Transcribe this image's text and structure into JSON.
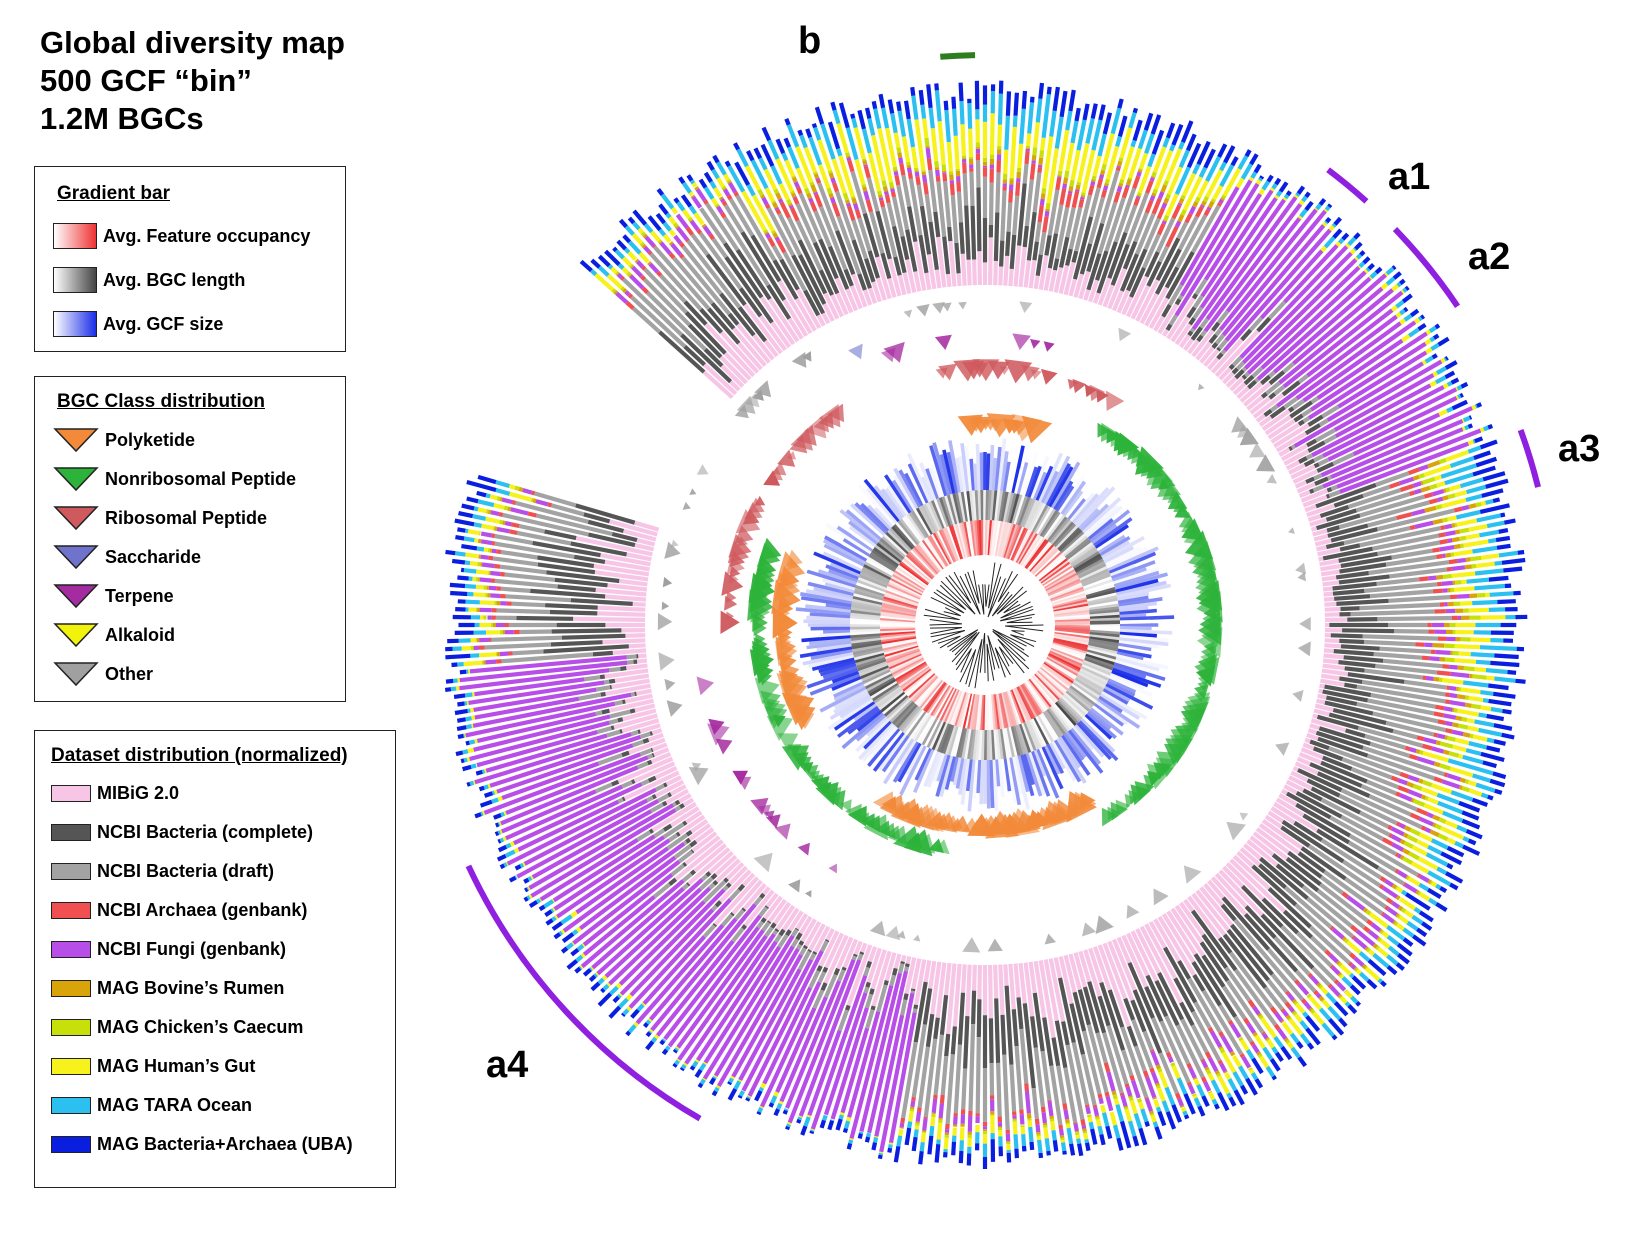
{
  "title": {
    "line1": "Global diversity map",
    "line2": "500 GCF “bin”",
    "line3": "1.2M BGCs"
  },
  "gradient_legend": {
    "heading": "Gradient bar",
    "items": [
      {
        "label": "Avg. Feature occupancy",
        "color": "#ee3333"
      },
      {
        "label": "Avg. BGC length",
        "color": "#444444"
      },
      {
        "label": "Avg. GCF size",
        "color": "#1a2ee8"
      }
    ]
  },
  "class_legend": {
    "heading": "BGC Class distribution",
    "items": [
      {
        "label": "Polyketide",
        "color": "#f28a3a"
      },
      {
        "label": "Nonribosomal Peptide",
        "color": "#2db33a"
      },
      {
        "label": "Ribosomal Peptide",
        "color": "#cf5a5e"
      },
      {
        "label": "Saccharide",
        "color": "#6f73cc"
      },
      {
        "label": "Terpene",
        "color": "#a52ba0"
      },
      {
        "label": "Alkaloid",
        "color": "#f2f20d"
      },
      {
        "label": "Other",
        "color": "#a0a0a0"
      }
    ]
  },
  "dataset_legend": {
    "heading": "Dataset distribution (normalized)",
    "items": [
      {
        "label": "MIBiG 2.0",
        "color": "#f7c6e6"
      },
      {
        "label": "NCBI Bacteria (complete)",
        "color": "#555555"
      },
      {
        "label": "NCBI Bacteria (draft)",
        "color": "#a3a3a3"
      },
      {
        "label": "NCBI Archaea (genbank)",
        "color": "#f05050"
      },
      {
        "label": "NCBI Fungi (genbank)",
        "color": "#b84ee8"
      },
      {
        "label": "MAG Bovine’s Rumen",
        "color": "#d9a30a"
      },
      {
        "label": "MAG Chicken’s Caecum",
        "color": "#c8e00a"
      },
      {
        "label": "MAG Human’s Gut",
        "color": "#f7f21c"
      },
      {
        "label": "MAG TARA Ocean",
        "color": "#2cc0f0"
      },
      {
        "label": "MAG Bacteria+Archaea (UBA)",
        "color": "#0a1ee0"
      }
    ]
  },
  "annotations": {
    "b": "b",
    "a1": "a1",
    "a2": "a2",
    "a3": "a3",
    "a4": "a4",
    "b_color": "#2e7d1e",
    "a_color": "#8f20e0"
  }
}
